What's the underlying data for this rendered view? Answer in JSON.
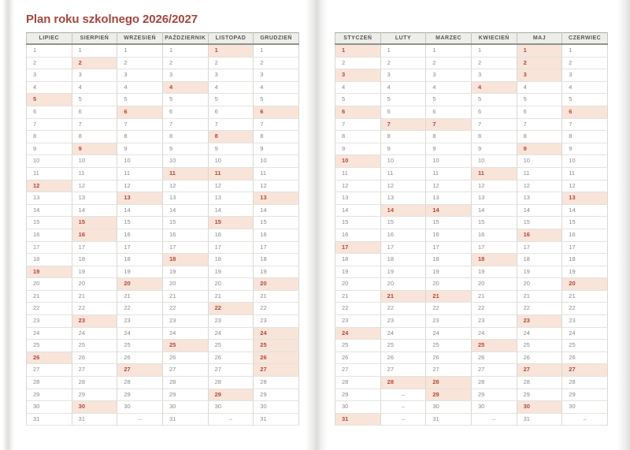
{
  "title": "Plan roku szkolnego 2026/2027",
  "rows": 31,
  "empty_day_marker": "–",
  "pages": [
    {
      "side": "left",
      "months": [
        {
          "name": "LIPIEC",
          "days": 31,
          "highlighted": [
            5,
            12,
            19,
            26
          ]
        },
        {
          "name": "SIERPIEŃ",
          "days": 31,
          "highlighted": [
            2,
            9,
            15,
            16,
            23,
            30
          ]
        },
        {
          "name": "WRZESIEŃ",
          "days": 30,
          "highlighted": [
            6,
            13,
            20,
            27
          ]
        },
        {
          "name": "PAŹDZIERNIK",
          "days": 31,
          "highlighted": [
            4,
            11,
            18,
            25
          ]
        },
        {
          "name": "LISTOPAD",
          "days": 30,
          "highlighted": [
            1,
            8,
            11,
            15,
            22,
            29
          ]
        },
        {
          "name": "GRUDZIEŃ",
          "days": 31,
          "highlighted": [
            6,
            13,
            20,
            24,
            25,
            26,
            27
          ]
        }
      ]
    },
    {
      "side": "right",
      "months": [
        {
          "name": "STYCZEŃ",
          "days": 31,
          "highlighted": [
            1,
            3,
            6,
            10,
            17,
            24,
            31
          ]
        },
        {
          "name": "LUTY",
          "days": 28,
          "highlighted": [
            7,
            14,
            21,
            28
          ]
        },
        {
          "name": "MARZEC",
          "days": 31,
          "highlighted": [
            7,
            14,
            21,
            28,
            29
          ]
        },
        {
          "name": "KWIECIEŃ",
          "days": 30,
          "highlighted": [
            4,
            11,
            18,
            25
          ]
        },
        {
          "name": "MAJ",
          "days": 31,
          "highlighted": [
            1,
            2,
            3,
            9,
            16,
            23,
            27,
            30
          ]
        },
        {
          "name": "CZERWIEC",
          "days": 30,
          "highlighted": [
            6,
            13,
            20,
            27
          ]
        }
      ]
    }
  ],
  "colors": {
    "title_color": "#a6453e",
    "highlight_bg": "#f8e4d9",
    "highlight_text": "#b4483d",
    "day_text": "#8a8a8a",
    "dash_text": "#9a9a9a",
    "header_bg": "#ededea",
    "header_text": "#565656",
    "grid_vertical": "#d8d8d4",
    "grid_horizontal": "#e3e3df",
    "header_top_border": "#ababa7",
    "header_bottom_border": "#91918d"
  }
}
